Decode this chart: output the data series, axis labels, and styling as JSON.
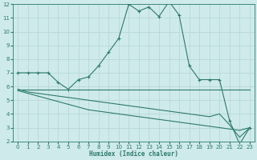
{
  "xlabel": "Humidex (Indice chaleur)",
  "bg_color": "#ceeaea",
  "grid_color": "#b8d8d8",
  "line_color": "#2d7a6a",
  "xlim": [
    -0.5,
    23.5
  ],
  "ylim": [
    2,
    12
  ],
  "yticks": [
    2,
    3,
    4,
    5,
    6,
    7,
    8,
    9,
    10,
    11,
    12
  ],
  "xticks": [
    0,
    1,
    2,
    3,
    4,
    5,
    6,
    7,
    8,
    9,
    10,
    11,
    12,
    13,
    14,
    15,
    16,
    17,
    18,
    19,
    20,
    21,
    22,
    23
  ],
  "line1_x": [
    0,
    1,
    2,
    3,
    4,
    5,
    6,
    7,
    8,
    9,
    10,
    11,
    12,
    13,
    14,
    15,
    16,
    17,
    18,
    19,
    20,
    21,
    22,
    23
  ],
  "line1_y": [
    7.0,
    7.0,
    7.0,
    7.0,
    6.3,
    5.8,
    6.5,
    6.7,
    7.5,
    8.5,
    9.5,
    12.0,
    11.5,
    11.8,
    11.1,
    12.2,
    11.2,
    7.5,
    6.5,
    6.5,
    6.5,
    3.5,
    1.8,
    3.0
  ],
  "line2_x": [
    0,
    1,
    2,
    3,
    4,
    5,
    6,
    7,
    8,
    9,
    10,
    11,
    12,
    13,
    14,
    15,
    16,
    17,
    18,
    19,
    20,
    21,
    22,
    23
  ],
  "line2_y": [
    5.8,
    5.8,
    5.8,
    5.8,
    5.8,
    5.8,
    5.8,
    5.8,
    5.8,
    5.8,
    5.8,
    5.8,
    5.8,
    5.8,
    5.8,
    5.8,
    5.8,
    5.8,
    5.8,
    5.8,
    5.8,
    5.8,
    5.8,
    5.8
  ],
  "line3_x": [
    0,
    1,
    2,
    3,
    4,
    5,
    6,
    7,
    8,
    9,
    10,
    11,
    12,
    13,
    14,
    15,
    16,
    17,
    18,
    19,
    20,
    21,
    22,
    23
  ],
  "line3_y": [
    5.8,
    5.6,
    5.5,
    5.4,
    5.3,
    5.2,
    5.1,
    5.0,
    4.9,
    4.8,
    4.7,
    4.6,
    4.5,
    4.4,
    4.3,
    4.2,
    4.1,
    4.0,
    3.9,
    3.8,
    4.0,
    3.2,
    2.3,
    3.0
  ],
  "line4_x": [
    0,
    1,
    2,
    3,
    4,
    5,
    6,
    7,
    8,
    9,
    10,
    11,
    12,
    13,
    14,
    15,
    16,
    17,
    18,
    19,
    20,
    21,
    22,
    23
  ],
  "line4_y": [
    5.7,
    5.5,
    5.3,
    5.1,
    4.9,
    4.7,
    4.5,
    4.3,
    4.2,
    4.1,
    4.0,
    3.9,
    3.8,
    3.7,
    3.6,
    3.5,
    3.4,
    3.3,
    3.2,
    3.1,
    3.0,
    2.9,
    2.8,
    3.0
  ]
}
